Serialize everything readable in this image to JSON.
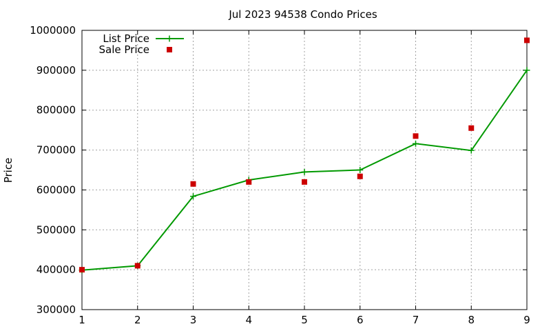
{
  "chart_data": {
    "type": "line",
    "title": "Jul 2023 94538 Condo Prices",
    "xlabel": "",
    "ylabel": "Price",
    "xlim": [
      1,
      9
    ],
    "ylim": [
      300000,
      1000000
    ],
    "x_ticks": [
      "1",
      "2",
      "3",
      "4",
      "5",
      "6",
      "7",
      "8",
      "9"
    ],
    "y_ticks": [
      "300000",
      "400000",
      "500000",
      "600000",
      "700000",
      "800000",
      "900000",
      "1000000"
    ],
    "grid": true,
    "legend_position": "top-left",
    "series": [
      {
        "name": "List Price",
        "style": "line+points",
        "color": "#009900",
        "x": [
          1,
          2,
          3,
          4,
          5,
          6,
          7,
          8,
          9
        ],
        "y": [
          399000,
          410000,
          584000,
          625000,
          645000,
          650000,
          716000,
          699000,
          900000
        ]
      },
      {
        "name": "Sale Price",
        "style": "points",
        "color": "#cc0000",
        "x": [
          1,
          2,
          3,
          4,
          5,
          6,
          7,
          8,
          9
        ],
        "y": [
          400000,
          410000,
          615000,
          620000,
          620000,
          634000,
          735000,
          755000,
          975000
        ]
      }
    ]
  }
}
